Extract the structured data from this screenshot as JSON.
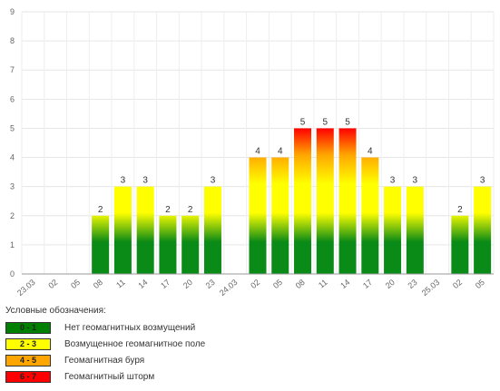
{
  "chart_data": {
    "type": "bar",
    "categories": [
      "23.03",
      "02",
      "05",
      "08",
      "11",
      "14",
      "17",
      "20",
      "23",
      "24.03",
      "02",
      "05",
      "08",
      "11",
      "14",
      "17",
      "20",
      "23",
      "25.03",
      "02",
      "05"
    ],
    "values": [
      null,
      null,
      null,
      2,
      3,
      3,
      2,
      2,
      3,
      null,
      4,
      4,
      5,
      5,
      5,
      4,
      3,
      3,
      null,
      2,
      3
    ],
    "y_ticks": [
      "0",
      "1",
      "2",
      "3",
      "4",
      "5",
      "6",
      "7",
      "8",
      "9"
    ],
    "ylim": [
      0,
      9
    ],
    "grid": true,
    "legend_position": "bottom-left",
    "colors": {
      "green": "#0a8a16",
      "yellow": "#ffff00",
      "orange": "#ffa500",
      "red": "#ff0000"
    }
  },
  "legend": {
    "title": "Условные обозначения:",
    "items": [
      {
        "range": "0 - 1",
        "label": "Нет геомагнитных возмущений",
        "color": "#008000"
      },
      {
        "range": "2 - 3",
        "label": "Возмущенное геомагнитное поле",
        "color": "#ffff00"
      },
      {
        "range": "4 - 5",
        "label": "Геомагнитная буря",
        "color": "#ffa500"
      },
      {
        "range": "6 - 7",
        "label": "Геомагнитный шторм",
        "color": "#ff0000"
      }
    ]
  }
}
